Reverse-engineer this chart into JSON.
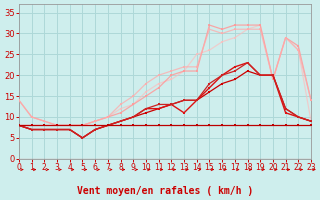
{
  "xlabel": "Vent moyen/en rafales ( km/h )",
  "background_color": "#ceeeed",
  "grid_color": "#add8d8",
  "x_range": [
    0,
    23
  ],
  "y_range": [
    0,
    37
  ],
  "yticks": [
    0,
    5,
    10,
    15,
    20,
    25,
    30,
    35
  ],
  "xticks": [
    0,
    1,
    2,
    3,
    4,
    5,
    6,
    7,
    8,
    9,
    10,
    11,
    12,
    13,
    14,
    15,
    16,
    17,
    18,
    19,
    20,
    21,
    22,
    23
  ],
  "lines": [
    {
      "x": [
        0,
        1,
        2,
        3,
        4,
        5,
        6,
        7,
        8,
        9,
        10,
        11,
        12,
        13,
        14,
        15,
        16,
        17,
        18,
        19,
        20,
        21,
        22,
        23
      ],
      "y": [
        8,
        8,
        8,
        8,
        8,
        8,
        8,
        8,
        8,
        8,
        8,
        8,
        8,
        8,
        8,
        8,
        8,
        8,
        8,
        8,
        8,
        8,
        8,
        8
      ],
      "color": "#bb0000",
      "lw": 0.9,
      "marker": "s",
      "ms": 1.8,
      "alpha": 1.0,
      "zorder": 5
    },
    {
      "x": [
        0,
        1,
        2,
        3,
        4,
        5,
        6,
        7,
        8,
        9,
        10,
        11,
        12,
        13,
        14,
        15,
        16,
        17,
        18,
        19,
        20,
        21,
        22,
        23
      ],
      "y": [
        8,
        7,
        7,
        7,
        7,
        5,
        7,
        8,
        9,
        10,
        11,
        12,
        13,
        14,
        14,
        16,
        18,
        19,
        21,
        20,
        20,
        12,
        10,
        9
      ],
      "color": "#cc0000",
      "lw": 0.9,
      "marker": "s",
      "ms": 1.8,
      "alpha": 1.0,
      "zorder": 4
    },
    {
      "x": [
        0,
        1,
        2,
        3,
        4,
        5,
        6,
        7,
        8,
        9,
        10,
        11,
        12,
        13,
        14,
        15,
        16,
        17,
        18,
        19,
        20,
        21,
        22,
        23
      ],
      "y": [
        8,
        7,
        7,
        7,
        7,
        5,
        7,
        8,
        9,
        10,
        12,
        12,
        13,
        11,
        14,
        17,
        20,
        22,
        23,
        20,
        20,
        11,
        10,
        9
      ],
      "color": "#dd1111",
      "lw": 1.0,
      "marker": "s",
      "ms": 2.0,
      "alpha": 1.0,
      "zorder": 4
    },
    {
      "x": [
        0,
        1,
        2,
        3,
        4,
        5,
        6,
        7,
        8,
        9,
        10,
        11,
        12,
        13,
        14,
        15,
        16,
        17,
        18,
        19,
        20,
        21,
        22,
        23
      ],
      "y": [
        8,
        7,
        7,
        7,
        7,
        5,
        7,
        8,
        9,
        10,
        12,
        13,
        13,
        14,
        14,
        18,
        20,
        21,
        23,
        20,
        20,
        12,
        10,
        9
      ],
      "color": "#cc2222",
      "lw": 0.9,
      "marker": "s",
      "ms": 1.8,
      "alpha": 1.0,
      "zorder": 4
    },
    {
      "x": [
        0,
        1,
        2,
        3,
        4,
        5,
        6,
        7,
        8,
        9,
        10,
        11,
        12,
        13,
        14,
        15,
        16,
        17,
        18,
        19,
        20,
        21,
        22,
        23
      ],
      "y": [
        14,
        10,
        9,
        8,
        8,
        8,
        9,
        10,
        11,
        13,
        15,
        17,
        20,
        21,
        21,
        32,
        31,
        32,
        32,
        32,
        19,
        29,
        27,
        14
      ],
      "color": "#ff9999",
      "lw": 0.9,
      "marker": "s",
      "ms": 2.0,
      "alpha": 0.85,
      "zorder": 3
    },
    {
      "x": [
        0,
        1,
        2,
        3,
        4,
        5,
        6,
        7,
        8,
        9,
        10,
        11,
        12,
        13,
        14,
        15,
        16,
        17,
        18,
        19,
        20,
        21,
        22,
        23
      ],
      "y": [
        14,
        10,
        9,
        8,
        8,
        8,
        9,
        10,
        13,
        15,
        18,
        20,
        21,
        22,
        22,
        31,
        30,
        31,
        31,
        31,
        19,
        29,
        26,
        14
      ],
      "color": "#ffaaaa",
      "lw": 0.9,
      "marker": "s",
      "ms": 2.0,
      "alpha": 0.75,
      "zorder": 3
    },
    {
      "x": [
        0,
        1,
        2,
        3,
        4,
        5,
        6,
        7,
        8,
        9,
        10,
        11,
        12,
        13,
        14,
        15,
        16,
        17,
        18,
        19,
        20,
        21,
        22,
        23
      ],
      "y": [
        8,
        8,
        8,
        8,
        8,
        8,
        9,
        10,
        12,
        13,
        16,
        18,
        19,
        21,
        25,
        26,
        28,
        29,
        31,
        32,
        19,
        29,
        26,
        9
      ],
      "color": "#ffbbbb",
      "lw": 0.9,
      "marker": "s",
      "ms": 2.0,
      "alpha": 0.65,
      "zorder": 2
    }
  ],
  "arrow_color": "#cc0000",
  "xlabel_color": "#cc0000",
  "xlabel_fontsize": 7.0,
  "xlabel_bold": true,
  "tick_color": "#cc0000",
  "ytick_fontsize": 6.0,
  "xtick_fontsize": 5.5
}
